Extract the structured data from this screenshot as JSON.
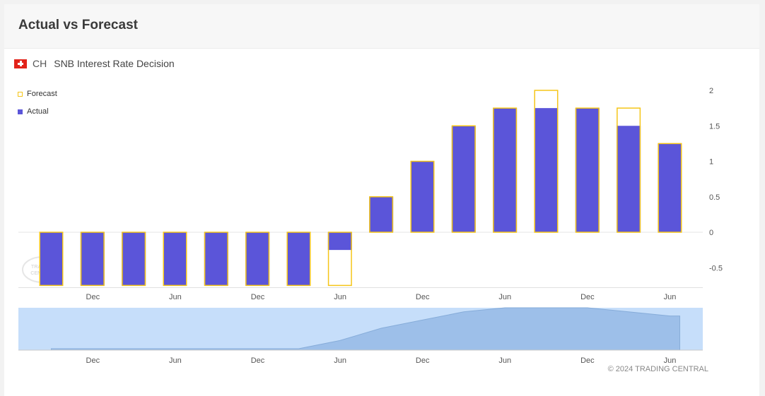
{
  "card": {
    "title": "Actual vs Forecast"
  },
  "indicator": {
    "country": "CH",
    "name": "SNB Interest Rate Decision",
    "flag_icon": "swiss-flag-icon"
  },
  "legend": {
    "forecast_label": "Forecast",
    "actual_label": "Actual"
  },
  "copyright": "© 2024 TRADING CENTRAL",
  "watermark": "TRADING CENTRAL",
  "colors": {
    "actual": "#5b55d9",
    "forecast": "#f5c518",
    "navigator_bg": "#c6defa",
    "navigator_area": "#9dbfe9"
  },
  "chart_data": {
    "type": "bar",
    "title": "",
    "series": [
      {
        "name": "Actual",
        "values": [
          -0.75,
          -0.75,
          -0.75,
          -0.75,
          -0.75,
          -0.75,
          -0.75,
          -0.25,
          0.5,
          1.0,
          1.5,
          1.75,
          1.75,
          1.75,
          1.5,
          1.25
        ]
      },
      {
        "name": "Forecast",
        "values": [
          -0.75,
          -0.75,
          -0.75,
          -0.75,
          -0.75,
          -0.75,
          -0.75,
          -0.75,
          0.5,
          1.0,
          1.5,
          1.75,
          2.0,
          1.75,
          1.75,
          1.25
        ]
      }
    ],
    "y_ticks": [
      2,
      1.5,
      1,
      0.5,
      0,
      -0.5
    ],
    "ylim": [
      -0.77,
      2.0
    ],
    "x_tick_labels": [
      "Dec",
      "Jun",
      "Dec",
      "Jun",
      "Dec",
      "Jun",
      "Dec",
      "Jun"
    ],
    "navigator_x_tick_labels": [
      "Dec",
      "Jun",
      "Dec",
      "Jun",
      "Dec",
      "Jun",
      "Dec",
      "Jun"
    ],
    "grid": "zero line only",
    "legend_position": "top-left"
  }
}
